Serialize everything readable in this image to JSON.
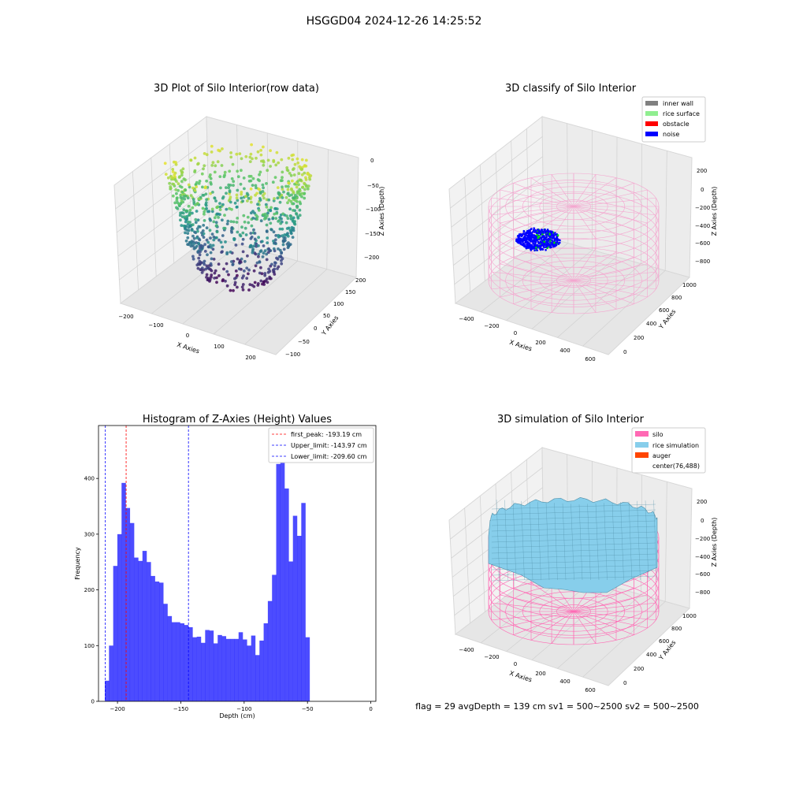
{
  "suptitle": "HSGGD04 2024-12-26 14:25:52",
  "footer": "flag = 29  avgDepth = 139 cm  sv1 = 500~2500  sv2 = 500~2500",
  "chart_data": [
    {
      "type": "scatter",
      "title": "3D Plot of Silo Interior(row data)",
      "projection": "3d",
      "xlabel": "X Axies",
      "ylabel": "Y Axies",
      "zlabel": "Z Axies (Depth)",
      "xticks": [
        "−200",
        "−100",
        "0",
        "100",
        "200"
      ],
      "yticks": [
        "−100",
        "−50",
        "0",
        "50",
        "100",
        "150",
        "200"
      ],
      "zticks": [
        "0",
        "−50",
        "−100",
        "−150",
        "−200"
      ],
      "xlim": [
        -230,
        230
      ],
      "ylim": [
        -110,
        220
      ],
      "zlim": [
        -230,
        10
      ],
      "colormap": "viridis",
      "grid": true
    },
    {
      "type": "scatter",
      "title": "3D classify of Silo Interior",
      "projection": "3d",
      "xlabel": "X Axies",
      "ylabel": "Y Axies",
      "zlabel": "Z Axies (Depth)",
      "xticks": [
        "−400",
        "−200",
        "0",
        "200",
        "400",
        "600"
      ],
      "yticks": [
        "0",
        "200",
        "400",
        "600",
        "800",
        "1000"
      ],
      "zticks": [
        "200",
        "0",
        "−200",
        "−400",
        "−600",
        "−800"
      ],
      "legend_position": "top-right",
      "legend": [
        {
          "label": "inner wall",
          "color": "#808080"
        },
        {
          "label": "rice surface",
          "color": "#90ee90"
        },
        {
          "label": "obstacle",
          "color": "#ff0000"
        },
        {
          "label": "noise",
          "color": "#0000ff"
        }
      ],
      "wireframe_color": "#f4a6cf",
      "grid": true
    },
    {
      "type": "bar",
      "title": "Histogram of Z-Axies (Height) Values",
      "xlabel": "Depth (cm)",
      "ylabel": "Frequency",
      "xlim": [
        -215,
        4
      ],
      "ylim": [
        0,
        495
      ],
      "xticks": [
        -200,
        -150,
        -100,
        -50,
        0
      ],
      "xtick_labels": [
        "−200",
        "−150",
        "−100",
        "−50",
        "0"
      ],
      "yticks": [
        0,
        100,
        200,
        300,
        400
      ],
      "bin_start": -210,
      "bin_width": 3.3,
      "values": [
        37,
        100,
        243,
        300,
        392,
        347,
        320,
        258,
        252,
        270,
        250,
        225,
        215,
        213,
        175,
        153,
        142,
        142,
        140,
        137,
        133,
        115,
        116,
        105,
        128,
        127,
        104,
        119,
        117,
        112,
        112,
        112,
        124,
        111,
        100,
        118,
        83,
        109,
        140,
        180,
        227,
        426,
        437,
        382,
        251,
        333,
        297,
        356,
        115
      ],
      "bar_color": "#0000ff",
      "bar_opacity": 0.7,
      "vlines": [
        {
          "label": "first_peak: -193.19 cm",
          "x": -193.19,
          "color": "#ff0000"
        },
        {
          "label": "Upper_limit: -143.97 cm",
          "x": -143.97,
          "color": "#0000ff"
        },
        {
          "label": "Lower_limit: -209.60 cm",
          "x": -209.6,
          "color": "#0000ff"
        }
      ],
      "legend_position": "top-right",
      "grid": false
    },
    {
      "type": "surface",
      "title": "3D simulation of Silo Interior",
      "projection": "3d",
      "xlabel": "X Axies",
      "ylabel": "Y Axies",
      "zlabel": "Z Axies (Depth)",
      "xticks": [
        "−400",
        "−200",
        "0",
        "200",
        "400",
        "600"
      ],
      "yticks": [
        "0",
        "200",
        "400",
        "600",
        "800",
        "1000"
      ],
      "zticks": [
        "200",
        "0",
        "−200",
        "−400",
        "−600",
        "−800"
      ],
      "legend_position": "top-right",
      "legend": [
        {
          "label": "silo",
          "color": "#ff69b4"
        },
        {
          "label": "rice simulation",
          "color": "#87ceeb"
        },
        {
          "label": "auger",
          "color": "#ff4500"
        },
        {
          "label": "center(76,488)",
          "color": ""
        }
      ],
      "grid": true
    }
  ]
}
